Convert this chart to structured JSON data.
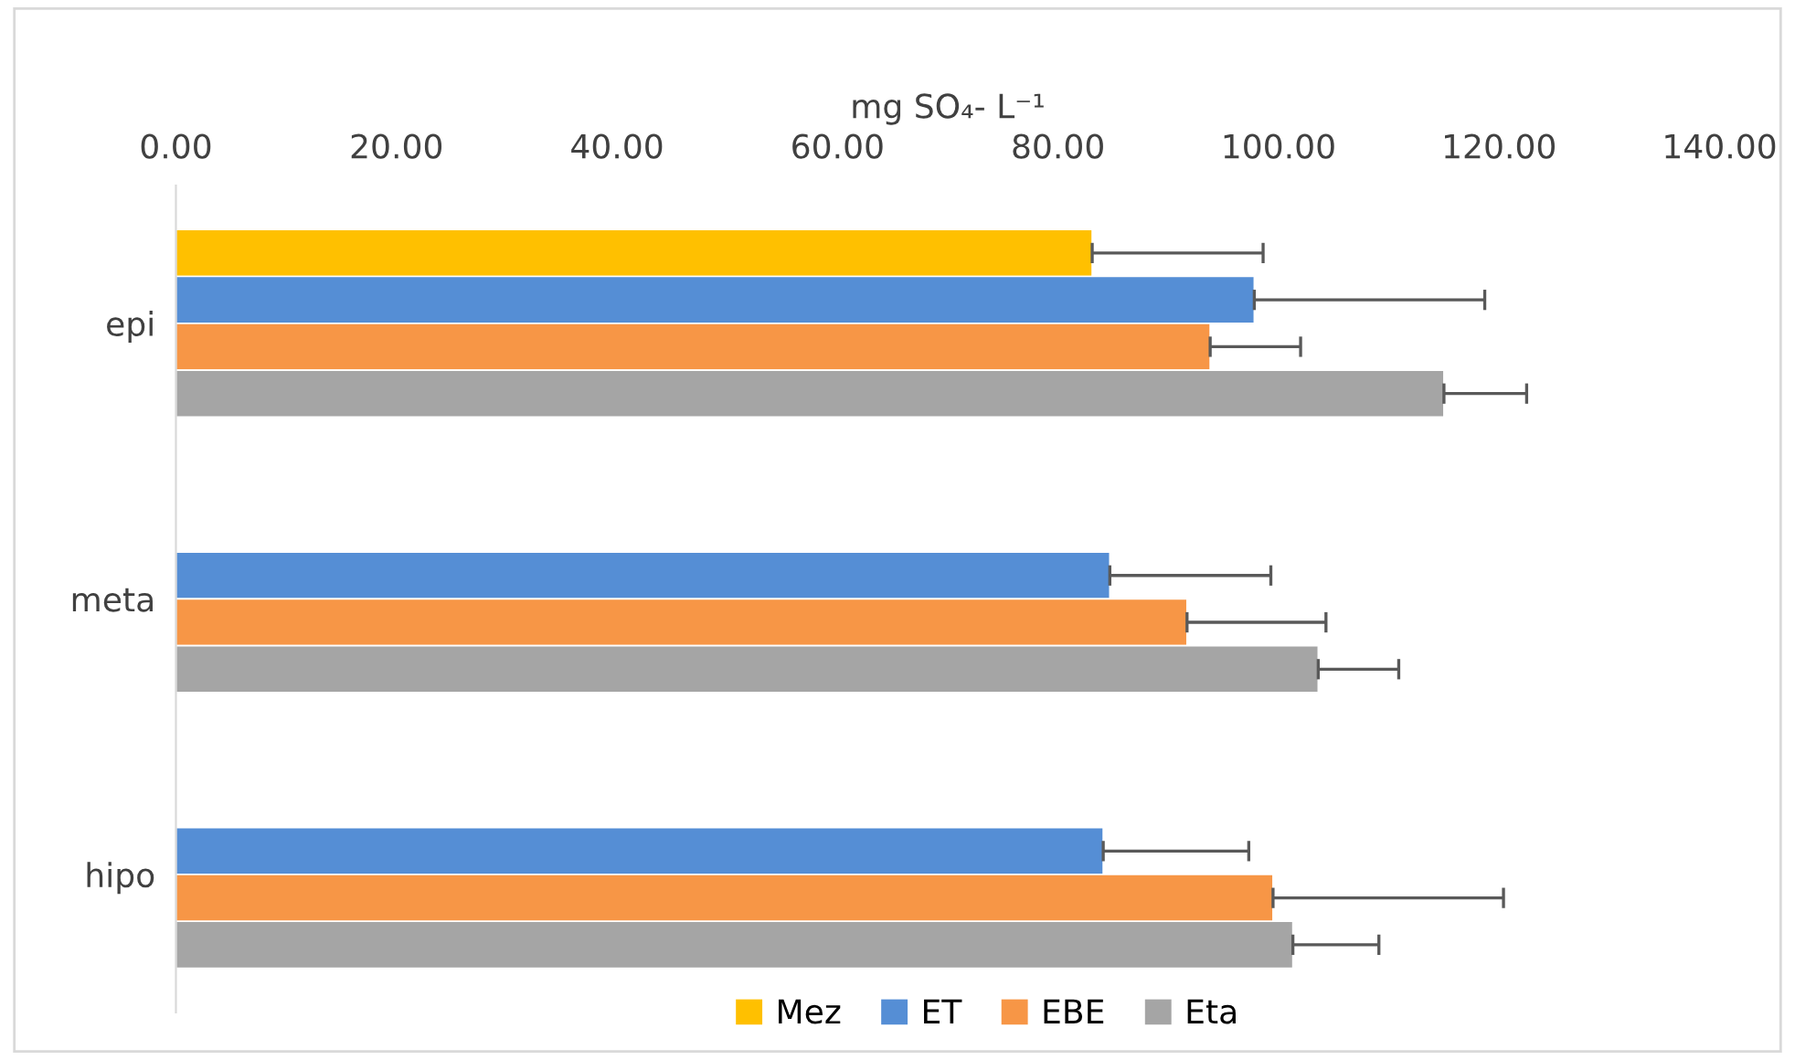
{
  "chart_data": {
    "type": "bar",
    "orientation": "horizontal",
    "xlabel": "mg SO₄- L⁻¹",
    "categories": [
      "epi",
      "meta",
      "hipo"
    ],
    "series": [
      {
        "name": "Mez",
        "color": "#ffc000",
        "values": [
          83.1,
          null,
          null
        ],
        "errors": [
          [
            83.1,
            98.6
          ],
          null,
          null
        ]
      },
      {
        "name": "ET",
        "color": "#558ed5",
        "values": [
          97.8,
          84.7,
          84.1
        ],
        "errors": [
          [
            97.8,
            118.7
          ],
          [
            84.7,
            99.3
          ],
          [
            84.1,
            97.3
          ]
        ]
      },
      {
        "name": "EBE",
        "color": "#f79646",
        "values": [
          93.8,
          91.7,
          99.5
        ],
        "errors": [
          [
            93.8,
            102.0
          ],
          [
            91.7,
            104.3
          ],
          [
            99.5,
            120.4
          ]
        ]
      },
      {
        "name": "Eta",
        "color": "#a5a5a5",
        "values": [
          115.0,
          103.6,
          101.3
        ],
        "errors": [
          [
            115.0,
            122.5
          ],
          [
            103.6,
            110.9
          ],
          [
            101.3,
            109.1
          ]
        ]
      }
    ],
    "xlim": [
      0,
      140
    ],
    "xticks": [
      {
        "value": 0,
        "label": "0.00"
      },
      {
        "value": 20,
        "label": "20.00"
      },
      {
        "value": 40,
        "label": "40.00"
      },
      {
        "value": 60,
        "label": "60.00"
      },
      {
        "value": 80,
        "label": "80.00"
      },
      {
        "value": 100,
        "label": "100.00"
      },
      {
        "value": 120,
        "label": "120.00"
      },
      {
        "value": 140,
        "label": "140.00"
      }
    ],
    "grid": false,
    "legend": "bottom"
  }
}
